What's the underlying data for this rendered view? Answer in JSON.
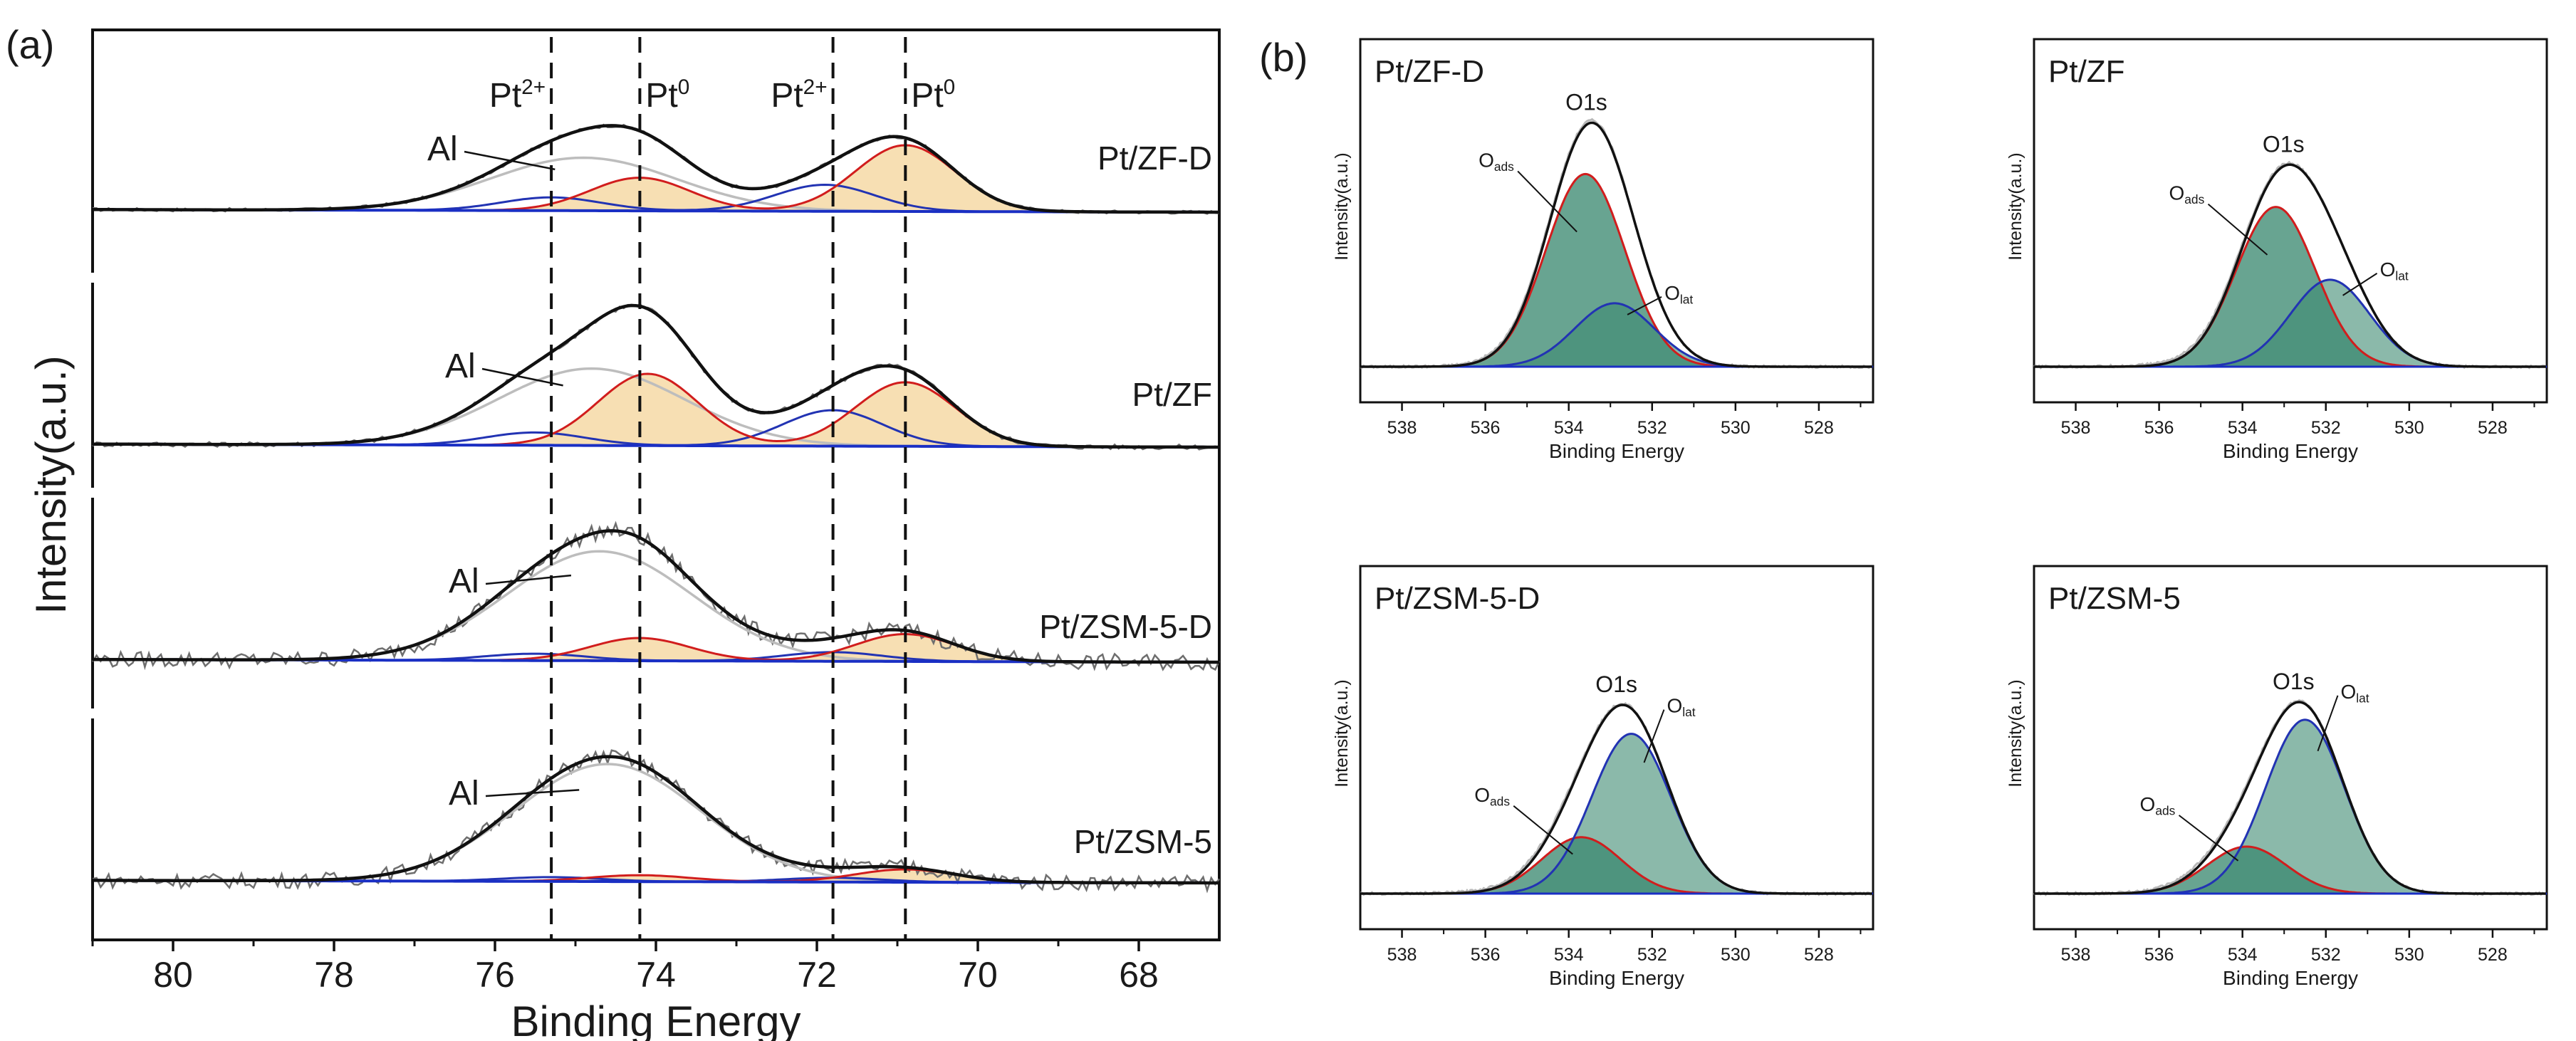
{
  "panel_labels": {
    "a": "(a)",
    "b": "(b)"
  },
  "colors": {
    "envelope": "#111111",
    "raw": "#6e6e6e",
    "al": "#bdbdbd",
    "pt0": "#d11d1d",
    "pt2": "#2233b3",
    "baseline": "#1a2fc4",
    "pt_fill": "#f6d9a6",
    "o_fill": "#3d8a72",
    "olat": "#2233b3",
    "oads": "#d11d1d"
  },
  "chart_data": [
    {
      "id": "pt4f",
      "type": "line",
      "xlabel": "Binding Energy",
      "ylabel": "Intensity(a.u.)",
      "xlim": [
        81.0,
        67.0
      ],
      "xticks": [
        80,
        78,
        76,
        74,
        72,
        70,
        68
      ],
      "dashed_lines": [
        {
          "x": 75.3,
          "label_main": "Pt",
          "label_sup": "2+"
        },
        {
          "x": 74.2,
          "label_main": "Pt",
          "label_sup": "0"
        },
        {
          "x": 71.8,
          "label_main": "Pt",
          "label_sup": "2+"
        },
        {
          "x": 70.9,
          "label_main": "Pt",
          "label_sup": "0"
        }
      ],
      "peak_params": {
        "pt_sigma": 0.62,
        "al_sigma": 1.15
      },
      "al_label": "Al",
      "series": [
        {
          "name": "Pt/ZF-D",
          "al": {
            "center": 74.9,
            "amp": 0.24
          },
          "pt0": [
            {
              "center": 74.2,
              "amp": 0.15
            },
            {
              "center": 70.9,
              "amp": 0.3
            }
          ],
          "pt2": [
            {
              "center": 75.3,
              "amp": 0.06
            },
            {
              "center": 71.9,
              "amp": 0.12
            }
          ],
          "noise": 0.008
        },
        {
          "name": "Pt/ZF",
          "al": {
            "center": 74.8,
            "amp": 0.3
          },
          "pt0": [
            {
              "center": 74.1,
              "amp": 0.28
            },
            {
              "center": 70.9,
              "amp": 0.25
            }
          ],
          "pt2": [
            {
              "center": 75.5,
              "amp": 0.05
            },
            {
              "center": 71.8,
              "amp": 0.14
            }
          ],
          "noise": 0.01
        },
        {
          "name": "Pt/ZSM-5-D",
          "al": {
            "center": 74.7,
            "amp": 0.48
          },
          "pt0": [
            {
              "center": 74.2,
              "amp": 0.1
            },
            {
              "center": 70.9,
              "amp": 0.12
            }
          ],
          "pt2": [
            {
              "center": 75.5,
              "amp": 0.03
            },
            {
              "center": 71.8,
              "amp": 0.04
            }
          ],
          "noise": 0.022
        },
        {
          "name": "Pt/ZSM-5",
          "al": {
            "center": 74.6,
            "amp": 0.55
          },
          "pt0": [
            {
              "center": 74.2,
              "amp": 0.03
            },
            {
              "center": 70.9,
              "amp": 0.06
            }
          ],
          "pt2": [
            {
              "center": 75.3,
              "amp": 0.02
            },
            {
              "center": 71.8,
              "amp": 0.02
            }
          ],
          "noise": 0.022
        }
      ]
    },
    {
      "id": "o1s",
      "type": "line",
      "xlabel": "Binding Energy",
      "ylabel": "Intensity(a.u.)",
      "xlim": [
        539.0,
        526.7
      ],
      "xticks": [
        538,
        536,
        534,
        532,
        530,
        528
      ],
      "sigma": 0.95,
      "panels": [
        {
          "name": "Pt/ZF-D",
          "peak_label": "O1s",
          "oads": {
            "center": 533.6,
            "amp": 0.82
          },
          "olat": {
            "center": 532.9,
            "amp": 0.27
          }
        },
        {
          "name": "Pt/ZF",
          "peak_label": "O1s",
          "oads": {
            "center": 533.2,
            "amp": 0.68
          },
          "olat": {
            "center": 531.9,
            "amp": 0.37
          }
        },
        {
          "name": "Pt/ZSM-5-D",
          "peak_label": "O1s",
          "oads": {
            "center": 533.7,
            "amp": 0.24
          },
          "olat": {
            "center": 532.5,
            "amp": 0.68
          }
        },
        {
          "name": "Pt/ZSM-5",
          "peak_label": "O1s",
          "oads": {
            "center": 533.9,
            "amp": 0.2
          },
          "olat": {
            "center": 532.5,
            "amp": 0.74
          }
        }
      ],
      "component_labels": {
        "main": "O",
        "oads_sub": "ads",
        "olat_sub": "lat"
      }
    }
  ]
}
